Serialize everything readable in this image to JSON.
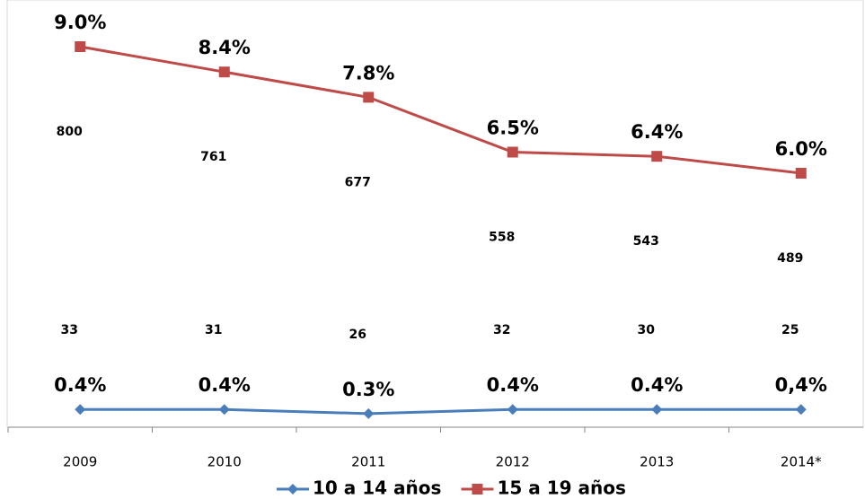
{
  "chart_data": {
    "type": "line",
    "categories": [
      "2009",
      "2010",
      "2011",
      "2012",
      "2013",
      "2014*"
    ],
    "ylim": [
      0,
      10
    ],
    "series": [
      {
        "name": "10 a 14 años",
        "color": "#4a7ebb",
        "marker": "diamond",
        "values": [
          0.4,
          0.4,
          0.3,
          0.4,
          0.4,
          0.4
        ],
        "value_labels": [
          "0.4%",
          "0.4%",
          "0.3%",
          "0.4%",
          "0.4%",
          "0,4%"
        ],
        "counts": [
          33,
          31,
          26,
          32,
          30,
          25
        ]
      },
      {
        "name": "15 a 19 años",
        "color": "#be4b48",
        "marker": "square",
        "values": [
          9.0,
          8.4,
          7.8,
          6.5,
          6.4,
          6.0
        ],
        "value_labels": [
          "9.0%",
          "8.4%",
          "7.8%",
          "6.5%",
          "6.4%",
          "6.0%"
        ],
        "counts": [
          800,
          761,
          677,
          558,
          543,
          489
        ]
      }
    ],
    "legend": "bottom"
  }
}
